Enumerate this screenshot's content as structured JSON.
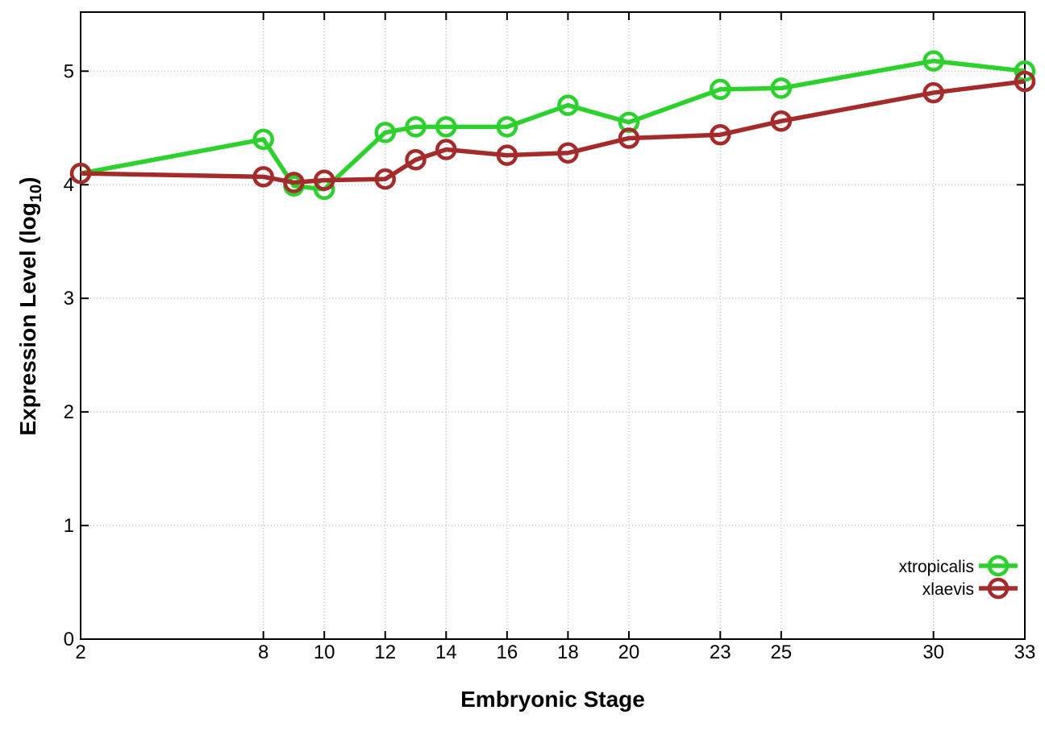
{
  "chart_data": {
    "type": "line",
    "title": "",
    "xlabel": "Embryonic Stage",
    "ylabel": {
      "main": "Expression Level (log",
      "sub": "10",
      "end": ")"
    },
    "xlim": [
      2,
      33
    ],
    "ylim": [
      0,
      5.52
    ],
    "x_ticks": [
      2,
      8,
      10,
      12,
      14,
      16,
      18,
      20,
      23,
      25,
      30,
      33
    ],
    "y_ticks": [
      0,
      1,
      2,
      3,
      4,
      5
    ],
    "grid": true,
    "grid_style": "dotted",
    "legend_position": "inside-bottom-right",
    "background_color": "#ffffff",
    "border_color": "#000000",
    "grid_color": "#aaaaaa",
    "marker": "open-circle",
    "series": [
      {
        "name": "xtropicalis",
        "color": "#2bd22b",
        "x": [
          2,
          8,
          9,
          10,
          12,
          13,
          14,
          16,
          18,
          20,
          23,
          25,
          30,
          33
        ],
        "values": [
          4.1,
          4.4,
          3.99,
          3.96,
          4.46,
          4.51,
          4.51,
          4.51,
          4.7,
          4.55,
          4.84,
          4.85,
          5.09,
          5.0
        ]
      },
      {
        "name": "xlaevis",
        "color": "#a52a2a",
        "x": [
          2,
          8,
          9,
          10,
          12,
          13,
          14,
          16,
          18,
          20,
          23,
          25,
          30,
          33
        ],
        "values": [
          4.1,
          4.07,
          4.02,
          4.04,
          4.05,
          4.22,
          4.31,
          4.26,
          4.28,
          4.41,
          4.44,
          4.56,
          4.81,
          4.91
        ]
      }
    ]
  }
}
